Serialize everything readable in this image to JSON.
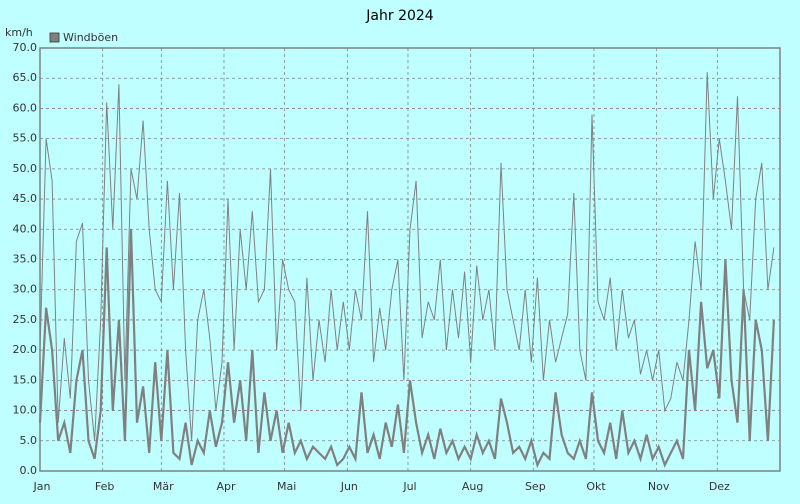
{
  "chart_data": {
    "type": "line",
    "title": "Jahr 2024",
    "y_label": "km/h",
    "x": [
      0,
      3,
      6,
      9,
      12,
      15,
      18,
      21,
      24,
      27,
      30,
      33,
      36,
      39,
      42,
      45,
      48,
      51,
      54,
      57,
      60,
      63,
      66,
      69,
      72,
      75,
      78,
      81,
      84,
      87,
      90,
      93,
      96,
      99,
      102,
      105,
      108,
      111,
      114,
      117,
      120,
      123,
      126,
      129,
      132,
      135,
      138,
      141,
      144,
      147,
      150,
      153,
      156,
      159,
      162,
      165,
      168,
      171,
      174,
      177,
      180,
      183,
      186,
      189,
      192,
      195,
      198,
      201,
      204,
      207,
      210,
      213,
      216,
      219,
      222,
      225,
      228,
      231,
      234,
      237,
      240,
      243,
      246,
      249,
      252,
      255,
      258,
      261,
      264,
      267,
      270,
      273,
      276,
      279,
      282,
      285,
      288,
      291,
      294,
      297,
      300,
      303,
      306,
      309,
      312,
      315,
      318,
      321,
      324,
      327,
      330,
      333,
      336,
      339,
      342,
      345,
      348,
      351,
      354,
      357,
      360,
      363
    ],
    "series": [
      {
        "name": "Windböen",
        "color": "#808080",
        "values": [
          20,
          55,
          48,
          8,
          22,
          12,
          38,
          41,
          15,
          5,
          25,
          61,
          40,
          64,
          15,
          50,
          45,
          58,
          40,
          30,
          28,
          48,
          30,
          46,
          20,
          5,
          25,
          30,
          22,
          10,
          18,
          45,
          20,
          40,
          30,
          43,
          28,
          30,
          50,
          20,
          35,
          30,
          28,
          10,
          32,
          15,
          25,
          18,
          30,
          20,
          28,
          20,
          30,
          25,
          43,
          18,
          27,
          20,
          30,
          35,
          15,
          40,
          48,
          22,
          28,
          25,
          35,
          20,
          30,
          22,
          33,
          18,
          34,
          25,
          30,
          20,
          51,
          30,
          25,
          20,
          30,
          18,
          32,
          15,
          25,
          18,
          22,
          26,
          46,
          20,
          15,
          59,
          28,
          25,
          32,
          20,
          30,
          22,
          25,
          16,
          20,
          15,
          20,
          10,
          12,
          18,
          15,
          25,
          38,
          30,
          66,
          45,
          55,
          48,
          40,
          62,
          30,
          25,
          45,
          51,
          30,
          37
        ]
      },
      {
        "color": "#808080",
        "values": [
          8,
          27,
          20,
          5,
          8,
          3,
          15,
          20,
          5,
          2,
          10,
          37,
          10,
          25,
          5,
          40,
          8,
          14,
          3,
          18,
          5,
          20,
          3,
          2,
          8,
          1,
          5,
          3,
          10,
          4,
          8,
          18,
          8,
          15,
          5,
          20,
          3,
          13,
          5,
          10,
          3,
          8,
          3,
          5,
          2,
          4,
          3,
          2,
          4,
          1,
          2,
          4,
          2,
          13,
          3,
          6,
          2,
          8,
          4,
          11,
          3,
          15,
          8,
          3,
          6,
          2,
          7,
          3,
          5,
          2,
          4,
          2,
          6,
          3,
          5,
          2,
          12,
          8,
          3,
          4,
          2,
          5,
          1,
          3,
          2,
          13,
          6,
          3,
          2,
          5,
          2,
          13,
          5,
          3,
          8,
          2,
          10,
          3,
          5,
          2,
          6,
          2,
          4,
          1,
          3,
          5,
          2,
          20,
          10,
          28,
          17,
          20,
          12,
          35,
          15,
          8,
          30,
          5,
          25,
          20,
          5,
          25
        ]
      }
    ],
    "xlim": [
      0,
      366
    ],
    "xticks": [
      {
        "value": 0,
        "label": "Jan"
      },
      {
        "value": 31,
        "label": "Feb"
      },
      {
        "value": 60,
        "label": "Mär"
      },
      {
        "value": 91,
        "label": "Apr"
      },
      {
        "value": 121,
        "label": "Mai"
      },
      {
        "value": 152,
        "label": "Jun"
      },
      {
        "value": 182,
        "label": "Jul"
      },
      {
        "value": 213,
        "label": "Aug"
      },
      {
        "value": 244,
        "label": "Sep"
      },
      {
        "value": 274,
        "label": "Okt"
      },
      {
        "value": 305,
        "label": "Nov"
      },
      {
        "value": 335,
        "label": "Dez"
      }
    ],
    "ylim": [
      0,
      70
    ],
    "yticks": [
      {
        "value": 0,
        "label": "0.0"
      },
      {
        "value": 5,
        "label": "5.0"
      },
      {
        "value": 10,
        "label": "10.0"
      },
      {
        "value": 15,
        "label": "15.0"
      },
      {
        "value": 20,
        "label": "20.0"
      },
      {
        "value": 25,
        "label": "25.0"
      },
      {
        "value": 30,
        "label": "30.0"
      },
      {
        "value": 35,
        "label": "35.0"
      },
      {
        "value": 40,
        "label": "40.0"
      },
      {
        "value": 45,
        "label": "45.0"
      },
      {
        "value": 50,
        "label": "50.0"
      },
      {
        "value": 55,
        "label": "55.0"
      },
      {
        "value": 60,
        "label": "60.0"
      },
      {
        "value": 65,
        "label": "65.0"
      },
      {
        "value": 70,
        "label": "70.0"
      }
    ],
    "grid": true
  }
}
